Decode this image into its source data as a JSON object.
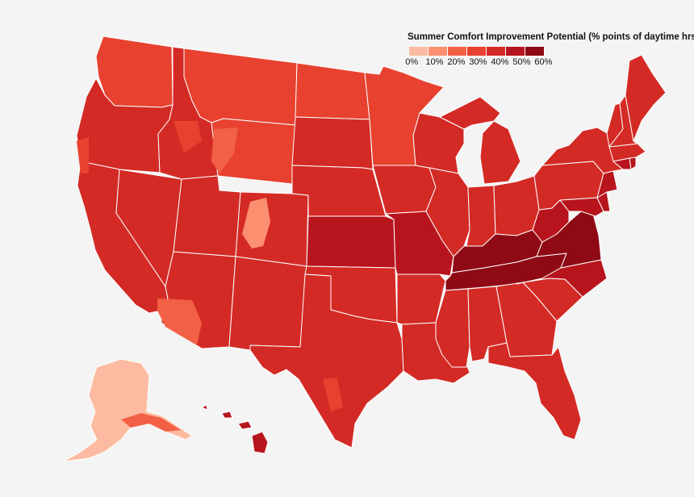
{
  "legend": {
    "title": "Summer Comfort Improvement Potential (% points of daytime hrs)",
    "labels": [
      "0%",
      "10%",
      "20%",
      "30%",
      "40%",
      "50%",
      "60%"
    ],
    "colors": [
      "#fcbba1",
      "#fb8f70",
      "#f26045",
      "#e8412f",
      "#d42a25",
      "#b8141d",
      "#8f0a14"
    ]
  },
  "background_color": "#f4f4f4",
  "border_color": "#ffffff",
  "regions": [
    {
      "name": "Washington",
      "bin": 3
    },
    {
      "name": "Oregon",
      "bin": 4
    },
    {
      "name": "California",
      "bin": 4
    },
    {
      "name": "Nevada",
      "bin": 4
    },
    {
      "name": "Idaho",
      "bin": 4
    },
    {
      "name": "Montana",
      "bin": 3
    },
    {
      "name": "Wyoming",
      "bin": 3
    },
    {
      "name": "Utah",
      "bin": 4
    },
    {
      "name": "Arizona",
      "bin": 4
    },
    {
      "name": "Colorado",
      "bin": 4
    },
    {
      "name": "New Mexico",
      "bin": 4
    },
    {
      "name": "North Dakota",
      "bin": 3
    },
    {
      "name": "South Dakota",
      "bin": 4
    },
    {
      "name": "Nebraska",
      "bin": 4
    },
    {
      "name": "Kansas",
      "bin": 5
    },
    {
      "name": "Oklahoma",
      "bin": 4
    },
    {
      "name": "Texas",
      "bin": 4
    },
    {
      "name": "Minnesota",
      "bin": 3
    },
    {
      "name": "Iowa",
      "bin": 4
    },
    {
      "name": "Missouri",
      "bin": 5
    },
    {
      "name": "Arkansas",
      "bin": 4
    },
    {
      "name": "Louisiana",
      "bin": 4
    },
    {
      "name": "Wisconsin",
      "bin": 4
    },
    {
      "name": "Illinois",
      "bin": 4
    },
    {
      "name": "Michigan",
      "bin": 4
    },
    {
      "name": "Indiana",
      "bin": 4
    },
    {
      "name": "Ohio",
      "bin": 4
    },
    {
      "name": "Kentucky",
      "bin": 6
    },
    {
      "name": "Tennessee",
      "bin": 6
    },
    {
      "name": "Mississippi",
      "bin": 4
    },
    {
      "name": "Alabama",
      "bin": 4
    },
    {
      "name": "Georgia",
      "bin": 4
    },
    {
      "name": "Florida",
      "bin": 4
    },
    {
      "name": "South Carolina",
      "bin": 4
    },
    {
      "name": "North Carolina",
      "bin": 5
    },
    {
      "name": "Virginia",
      "bin": 6
    },
    {
      "name": "West Virginia",
      "bin": 5
    },
    {
      "name": "Maryland",
      "bin": 5
    },
    {
      "name": "Delaware",
      "bin": 5
    },
    {
      "name": "Pennsylvania",
      "bin": 4
    },
    {
      "name": "New Jersey",
      "bin": 5
    },
    {
      "name": "New York",
      "bin": 4
    },
    {
      "name": "Connecticut",
      "bin": 5
    },
    {
      "name": "Rhode Island",
      "bin": 5
    },
    {
      "name": "Massachusetts",
      "bin": 4
    },
    {
      "name": "Vermont",
      "bin": 4
    },
    {
      "name": "New Hampshire",
      "bin": 4
    },
    {
      "name": "Maine",
      "bin": 4
    },
    {
      "name": "Alaska",
      "bin": 0
    },
    {
      "name": "Hawaii",
      "bin": 5
    }
  ],
  "accent_areas": [
    {
      "name": "Colorado Rockies",
      "bin": 1
    },
    {
      "name": "Wyoming ranges",
      "bin": 2
    },
    {
      "name": "Idaho mountains",
      "bin": 3
    },
    {
      "name": "Pacific coast",
      "bin": 3
    },
    {
      "name": "Southwest desert",
      "bin": 2
    },
    {
      "name": "West Texas",
      "bin": 3
    },
    {
      "name": "Southern Alaska",
      "bin": 2
    },
    {
      "name": "Appalachians",
      "bin": 4
    }
  ]
}
